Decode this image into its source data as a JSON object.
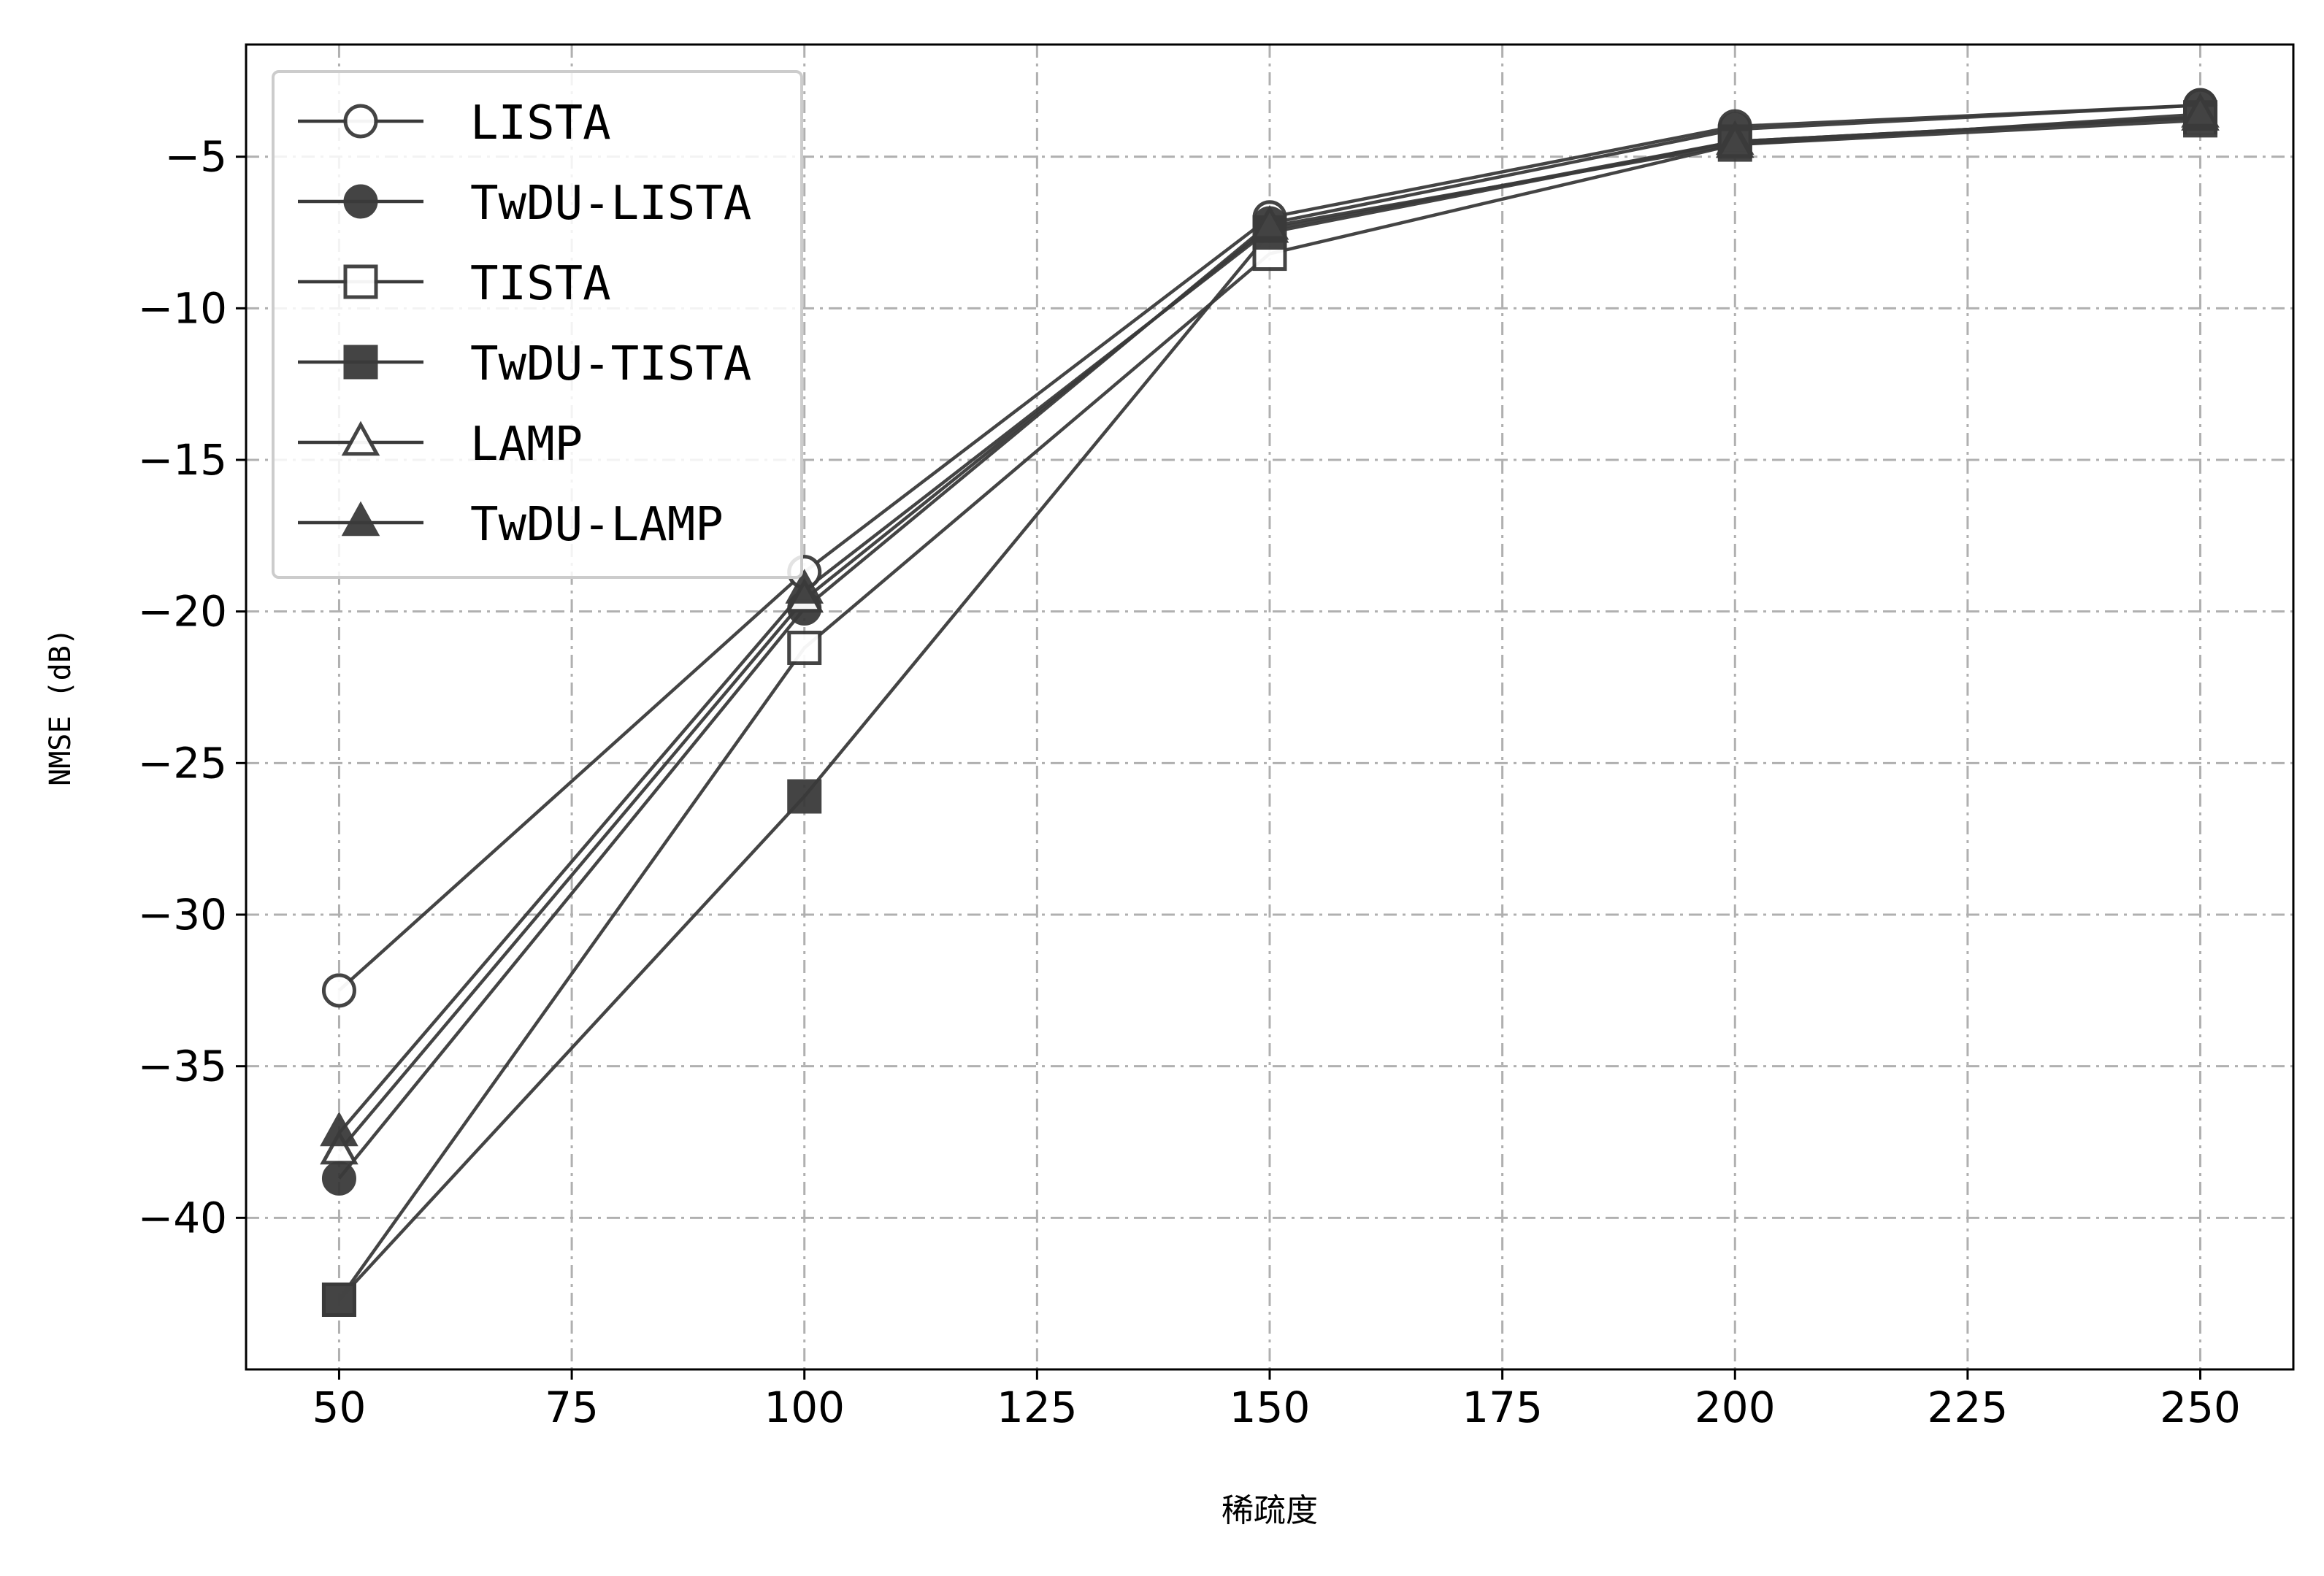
{
  "chart_data": {
    "type": "line",
    "title": "",
    "xlabel": "稀疏度",
    "ylabel": "NMSE (dB)",
    "x": [
      50,
      100,
      150,
      200,
      250
    ],
    "xlim": [
      40,
      260
    ],
    "ylim": [
      -45,
      -1.3
    ],
    "xticks": [
      50,
      75,
      100,
      125,
      150,
      175,
      200,
      225,
      250
    ],
    "yticks": [
      -40,
      -35,
      -30,
      -25,
      -20,
      -15,
      -10,
      -5
    ],
    "grid": true,
    "grid_style": "dash-dot",
    "legend_position": "top-left",
    "series": [
      {
        "name": "LISTA",
        "marker": "circle",
        "filled": false,
        "values": [
          -32.5,
          -18.7,
          -7.0,
          -4.0,
          -3.3
        ]
      },
      {
        "name": "TwDU-LISTA",
        "marker": "circle",
        "filled": true,
        "values": [
          -38.7,
          -19.9,
          -7.2,
          -4.1,
          -3.3
        ]
      },
      {
        "name": "TISTA",
        "marker": "square",
        "filled": false,
        "values": [
          -42.7,
          -21.2,
          -8.2,
          -4.6,
          -3.8
        ]
      },
      {
        "name": "TwDU-TISTA",
        "marker": "square",
        "filled": true,
        "values": [
          -42.7,
          -26.1,
          -7.5,
          -4.5,
          -3.7
        ]
      },
      {
        "name": "LAMP",
        "marker": "triangle",
        "filled": false,
        "values": [
          -37.8,
          -19.6,
          -7.3,
          -4.6,
          -3.6
        ]
      },
      {
        "name": "TwDU-LAMP",
        "marker": "triangle",
        "filled": true,
        "values": [
          -37.2,
          -19.3,
          -7.4,
          -4.5,
          -3.7
        ]
      }
    ],
    "colors": {
      "line": "#3a3a3a",
      "marker_fill": "#3a3a3a",
      "grid": "#b0b0b0",
      "axes": "#000000"
    }
  }
}
